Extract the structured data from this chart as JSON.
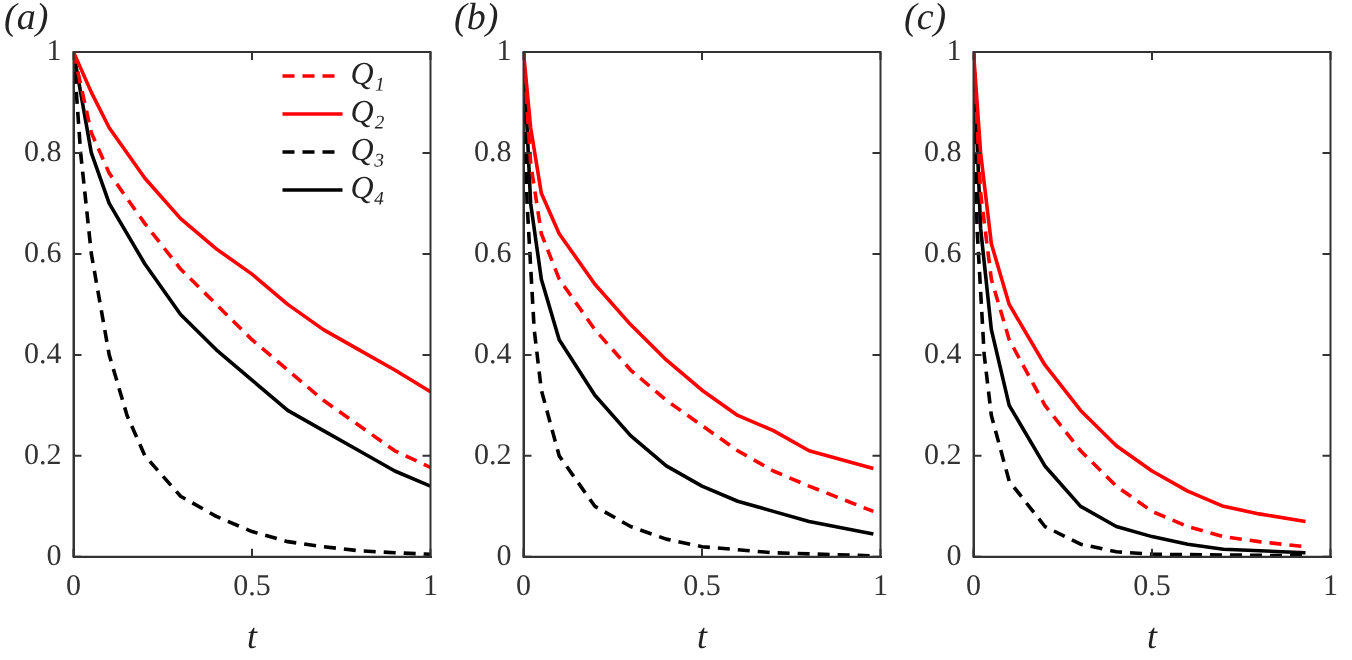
{
  "chart_data": [
    {
      "type": "line",
      "title": "(a)",
      "xlabel": "t",
      "xlim": [
        0,
        1
      ],
      "xticks": [
        0,
        0.5,
        1
      ],
      "ylim": [
        0,
        1
      ],
      "yticks": [
        0,
        0.2,
        0.4,
        0.6,
        0.8,
        1
      ],
      "legend": "top right",
      "grid": false,
      "marker": "none",
      "series": [
        {
          "name": "Q₁",
          "color": "#ff0000",
          "line_style": "dashed",
          "x": [
            0,
            0.05,
            0.1,
            0.2,
            0.3,
            0.4,
            0.5,
            0.6,
            0.7,
            0.8,
            0.9,
            1
          ],
          "values": [
            1,
            0.84,
            0.76,
            0.66,
            0.57,
            0.5,
            0.43,
            0.37,
            0.31,
            0.26,
            0.21,
            0.177
          ]
        },
        {
          "name": "Q₂",
          "color": "#ff0000",
          "line_style": "solid",
          "x": [
            0,
            0.05,
            0.1,
            0.2,
            0.3,
            0.4,
            0.5,
            0.6,
            0.7,
            0.8,
            0.9,
            1
          ],
          "values": [
            1,
            0.92,
            0.85,
            0.75,
            0.67,
            0.61,
            0.56,
            0.5,
            0.45,
            0.41,
            0.37,
            0.327
          ]
        },
        {
          "name": "Q₃",
          "color": "#000000",
          "line_style": "dashed",
          "x": [
            0,
            0.02,
            0.05,
            0.1,
            0.15,
            0.2,
            0.3,
            0.4,
            0.5,
            0.6,
            0.7,
            0.8,
            0.9,
            1
          ],
          "values": [
            1,
            0.8,
            0.6,
            0.4,
            0.28,
            0.2,
            0.12,
            0.08,
            0.05,
            0.03,
            0.02,
            0.012,
            0.008,
            0.005
          ]
        },
        {
          "name": "Q₄",
          "color": "#000000",
          "line_style": "solid",
          "x": [
            0,
            0.05,
            0.1,
            0.2,
            0.3,
            0.4,
            0.5,
            0.6,
            0.7,
            0.8,
            0.9,
            1
          ],
          "values": [
            1,
            0.8,
            0.7,
            0.58,
            0.48,
            0.41,
            0.35,
            0.29,
            0.25,
            0.21,
            0.17,
            0.14
          ]
        }
      ]
    },
    {
      "type": "line",
      "title": "(b)",
      "xlabel": "t",
      "xlim": [
        0,
        1
      ],
      "xticks": [
        0,
        0.5,
        1
      ],
      "ylim": [
        0,
        1
      ],
      "yticks": [
        0,
        0.2,
        0.4,
        0.6,
        0.8,
        1
      ],
      "grid": false,
      "marker": "none",
      "series": [
        {
          "color": "#ff0000",
          "line_style": "dashed",
          "x": [
            0,
            0.02,
            0.05,
            0.1,
            0.2,
            0.3,
            0.4,
            0.5,
            0.6,
            0.7,
            0.8,
            0.98
          ],
          "values": [
            1,
            0.78,
            0.64,
            0.55,
            0.45,
            0.37,
            0.31,
            0.26,
            0.21,
            0.17,
            0.14,
            0.09
          ]
        },
        {
          "color": "#ff0000",
          "line_style": "solid",
          "x": [
            0,
            0.02,
            0.05,
            0.1,
            0.2,
            0.3,
            0.4,
            0.5,
            0.6,
            0.7,
            0.8,
            0.98
          ],
          "values": [
            1,
            0.85,
            0.72,
            0.64,
            0.54,
            0.46,
            0.39,
            0.33,
            0.28,
            0.25,
            0.21,
            0.175
          ]
        },
        {
          "color": "#000000",
          "line_style": "dashed",
          "x": [
            0,
            0.01,
            0.03,
            0.05,
            0.1,
            0.2,
            0.3,
            0.4,
            0.5,
            0.7,
            0.98
          ],
          "values": [
            1,
            0.7,
            0.45,
            0.33,
            0.2,
            0.1,
            0.06,
            0.035,
            0.02,
            0.008,
            0.002
          ]
        },
        {
          "color": "#000000",
          "line_style": "solid",
          "x": [
            0,
            0.02,
            0.05,
            0.1,
            0.2,
            0.3,
            0.4,
            0.5,
            0.6,
            0.7,
            0.8,
            0.98
          ],
          "values": [
            1,
            0.7,
            0.55,
            0.43,
            0.32,
            0.24,
            0.18,
            0.14,
            0.11,
            0.09,
            0.07,
            0.045
          ]
        }
      ]
    },
    {
      "type": "line",
      "title": "(c)",
      "xlabel": "t",
      "xlim": [
        0,
        1
      ],
      "xticks": [
        0,
        0.5,
        1
      ],
      "ylim": [
        0,
        1
      ],
      "yticks": [
        0,
        0.2,
        0.4,
        0.6,
        0.8,
        1
      ],
      "grid": false,
      "marker": "none",
      "series": [
        {
          "color": "#ff0000",
          "line_style": "dashed",
          "x": [
            0,
            0.02,
            0.05,
            0.1,
            0.2,
            0.3,
            0.4,
            0.5,
            0.6,
            0.7,
            0.8,
            0.93
          ],
          "values": [
            1,
            0.72,
            0.55,
            0.43,
            0.3,
            0.21,
            0.14,
            0.09,
            0.06,
            0.04,
            0.03,
            0.02
          ]
        },
        {
          "color": "#ff0000",
          "line_style": "solid",
          "x": [
            0,
            0.02,
            0.05,
            0.1,
            0.2,
            0.3,
            0.4,
            0.5,
            0.6,
            0.7,
            0.8,
            0.93
          ],
          "values": [
            1,
            0.8,
            0.62,
            0.5,
            0.38,
            0.29,
            0.22,
            0.17,
            0.13,
            0.1,
            0.085,
            0.07
          ]
        },
        {
          "color": "#000000",
          "line_style": "dashed",
          "x": [
            0,
            0.01,
            0.03,
            0.05,
            0.1,
            0.2,
            0.3,
            0.4,
            0.5,
            0.93
          ],
          "values": [
            1,
            0.65,
            0.4,
            0.28,
            0.15,
            0.06,
            0.025,
            0.01,
            0.005,
            0.002
          ]
        },
        {
          "color": "#000000",
          "line_style": "solid",
          "x": [
            0,
            0.02,
            0.05,
            0.1,
            0.2,
            0.3,
            0.4,
            0.5,
            0.6,
            0.7,
            0.93
          ],
          "values": [
            1,
            0.65,
            0.45,
            0.3,
            0.18,
            0.1,
            0.06,
            0.04,
            0.025,
            0.015,
            0.008
          ]
        }
      ]
    }
  ]
}
